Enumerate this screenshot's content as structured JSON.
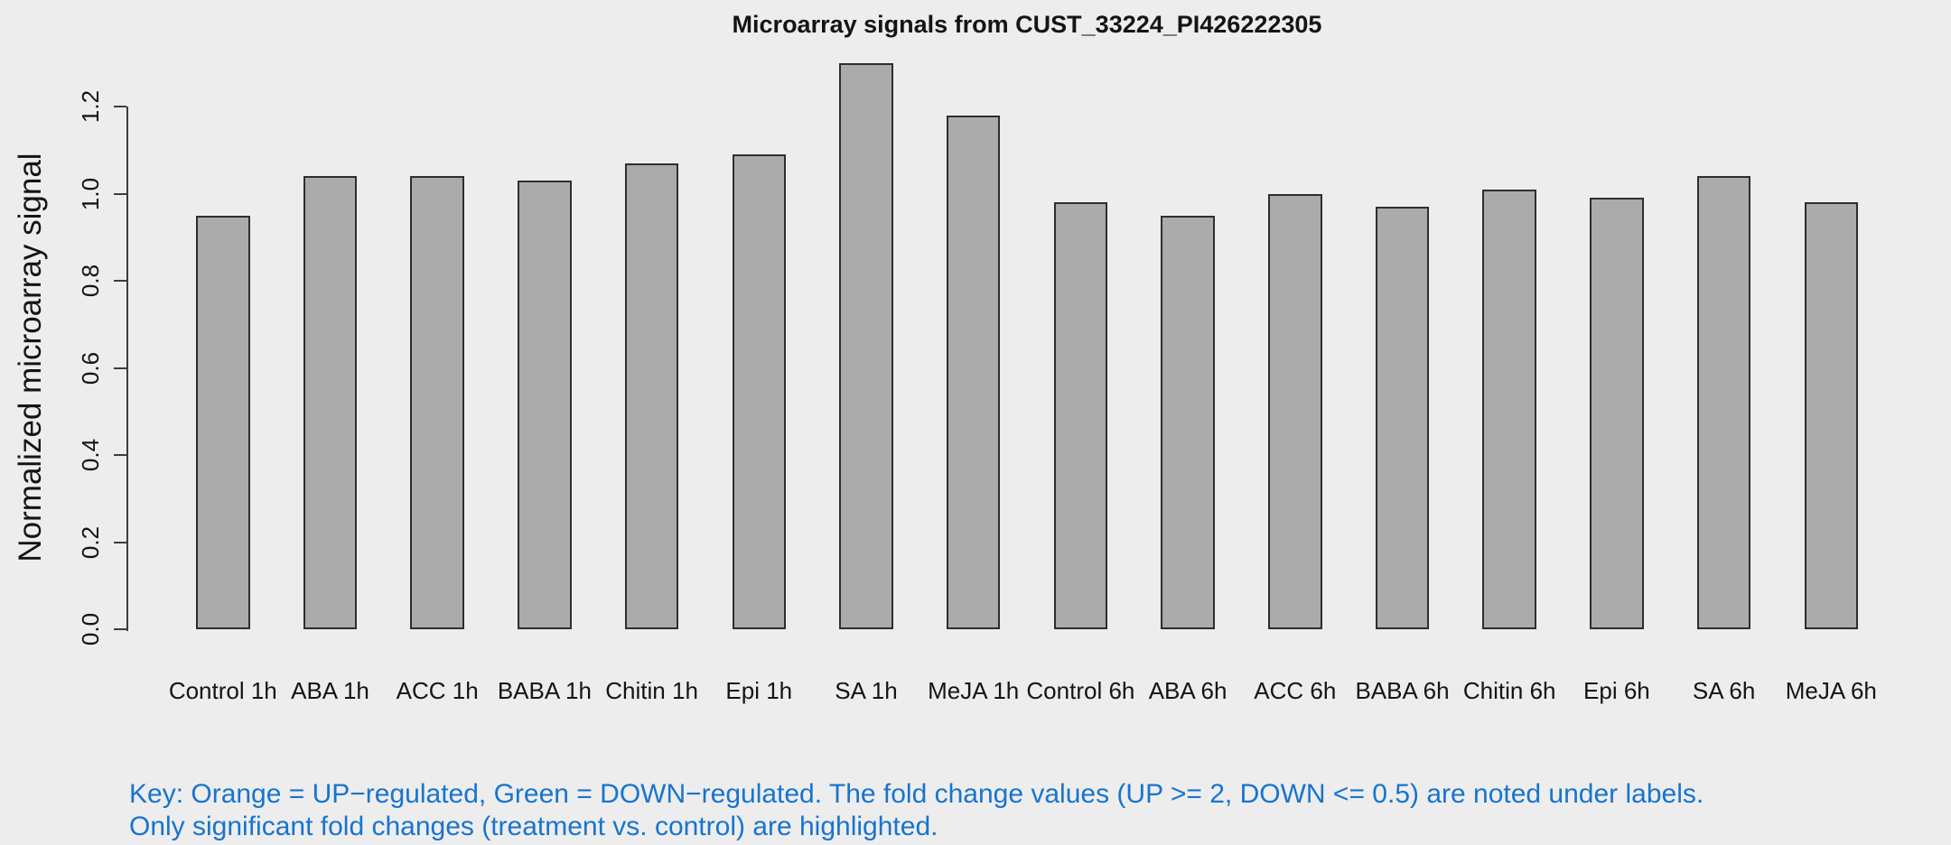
{
  "chart_data": {
    "type": "bar",
    "title": "Microarray signals from CUST_33224_PI426222305",
    "xlabel": "",
    "ylabel": "Normalized microarray signal",
    "categories": [
      "Control 1h",
      "ABA 1h",
      "ACC 1h",
      "BABA 1h",
      "Chitin 1h",
      "Epi 1h",
      "SA 1h",
      "MeJA 1h",
      "Control 6h",
      "ABA 6h",
      "ACC 6h",
      "BABA 6h",
      "Chitin 6h",
      "Epi 6h",
      "SA 6h",
      "MeJA 6h"
    ],
    "values": [
      0.95,
      1.04,
      1.04,
      1.03,
      1.07,
      1.09,
      1.3,
      1.18,
      0.98,
      0.95,
      1.0,
      0.97,
      1.01,
      0.99,
      1.04,
      0.98
    ],
    "yticks": [
      0.0,
      0.2,
      0.4,
      0.6,
      0.8,
      1.0,
      1.2
    ],
    "ylim": [
      0,
      1.2
    ],
    "grid": false,
    "legend": null,
    "colors": {
      "background": "#ededed",
      "bar_fill": "#ababab",
      "bar_border": "#2e2e2e",
      "axis": "#3c3c3c",
      "text": "#141414"
    }
  },
  "key_note": {
    "line1": "Key: Orange = UP−regulated, Green = DOWN−regulated. The fold change values (UP >= 2, DOWN <= 0.5) are noted under labels.",
    "line2": "Only significant fold changes (treatment vs. control) are highlighted.",
    "color": "#1874cd"
  }
}
